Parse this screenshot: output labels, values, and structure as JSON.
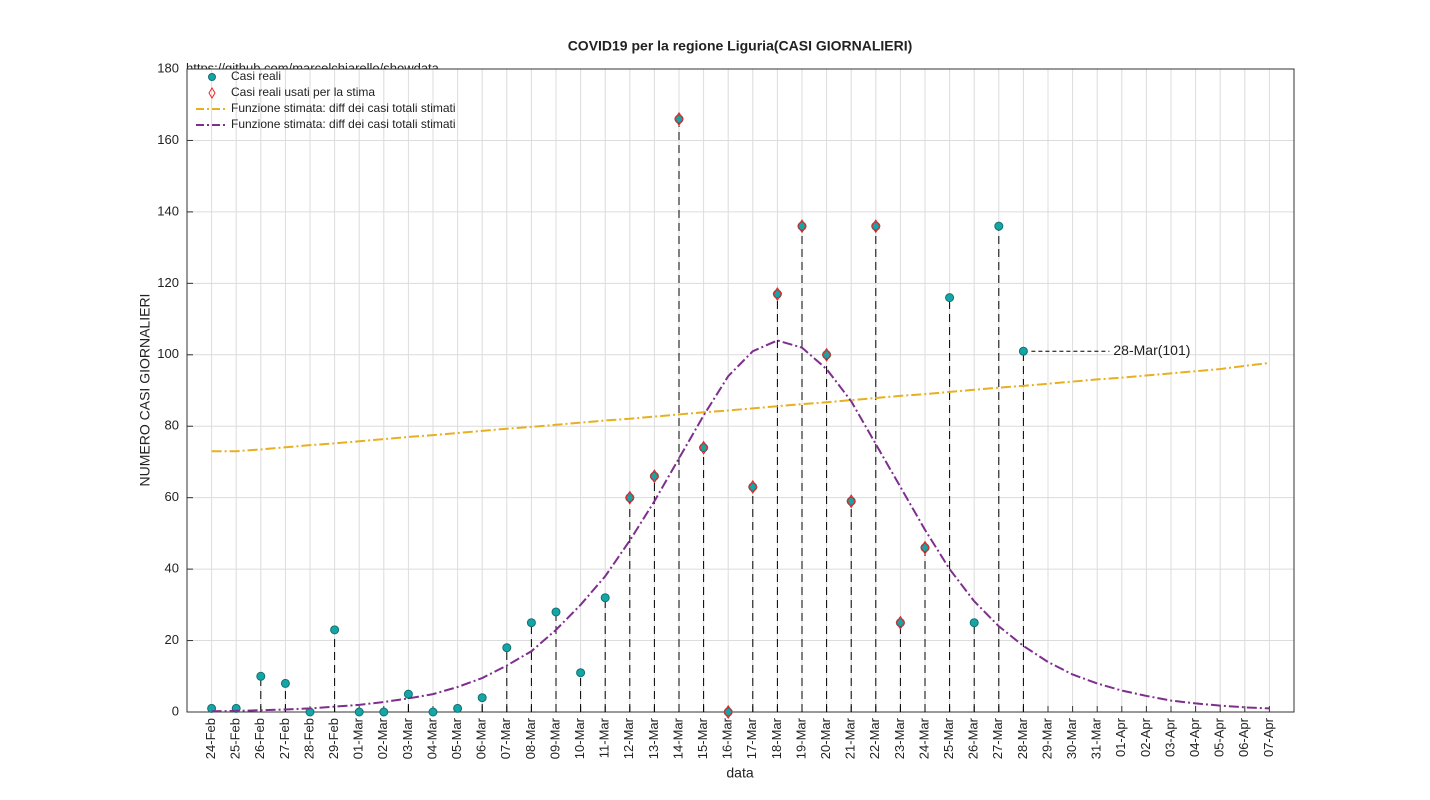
{
  "chart_data": {
    "type": "line",
    "title": "COVID19 per la regione Liguria(CASI GIORNALIERI)",
    "source": "https://github.com/marcelchiarello/showdata",
    "x_label": "data",
    "y_label": "NUMERO CASI GIORNALIERI",
    "annotation": {
      "text": "28-Mar(101)",
      "category_index": 33,
      "series_index": 0
    },
    "categories": [
      "24-Feb",
      "25-Feb",
      "26-Feb",
      "27-Feb",
      "28-Feb",
      "29-Feb",
      "01-Mar",
      "02-Mar",
      "03-Mar",
      "04-Mar",
      "05-Mar",
      "06-Mar",
      "07-Mar",
      "08-Mar",
      "09-Mar",
      "10-Mar",
      "11-Mar",
      "12-Mar",
      "13-Mar",
      "14-Mar",
      "15-Mar",
      "16-Mar",
      "17-Mar",
      "18-Mar",
      "19-Mar",
      "20-Mar",
      "21-Mar",
      "22-Mar",
      "23-Mar",
      "24-Mar",
      "25-Mar",
      "26-Mar",
      "27-Mar",
      "28-Mar",
      "29-Mar",
      "30-Mar",
      "31-Mar",
      "01-Apr",
      "02-Apr",
      "03-Apr",
      "04-Apr",
      "05-Apr",
      "06-Apr",
      "07-Apr"
    ],
    "series": [
      {
        "name": "Casi reali",
        "kind": "points",
        "color": "#14a6a6",
        "stems": true,
        "values": [
          1,
          1,
          10,
          8,
          0,
          23,
          0,
          0,
          5,
          0,
          1,
          4,
          18,
          25,
          28,
          11,
          32,
          60,
          66,
          166,
          74,
          0,
          63,
          117,
          136,
          100,
          59,
          136,
          25,
          46,
          116,
          25,
          136,
          101,
          null,
          null,
          null,
          null,
          null,
          null,
          null,
          null,
          null,
          null
        ]
      },
      {
        "name": "Casi reali usati per la stima",
        "kind": "diamonds",
        "color": "#e8282b",
        "values": [
          null,
          null,
          null,
          null,
          null,
          null,
          null,
          null,
          null,
          null,
          null,
          null,
          null,
          null,
          null,
          null,
          null,
          60,
          66,
          166,
          74,
          0,
          63,
          117,
          136,
          100,
          59,
          136,
          25,
          46,
          null,
          null,
          null,
          null,
          null,
          null,
          null,
          null,
          null,
          null,
          null,
          null,
          null,
          null
        ]
      },
      {
        "name": "Funzione stimata: diff dei casi totali stimati",
        "kind": "line",
        "color": "#e8b020",
        "values": [
          73,
          73,
          73.5,
          74.1,
          74.7,
          75.2,
          75.8,
          76.4,
          77,
          77.5,
          78.1,
          78.7,
          79.3,
          79.8,
          80.4,
          81,
          81.6,
          82.1,
          82.7,
          83.3,
          83.9,
          84.4,
          85,
          85.6,
          86.2,
          86.7,
          87.3,
          87.9,
          88.5,
          89,
          89.6,
          90.2,
          90.8,
          91.3,
          91.9,
          92.5,
          93.1,
          93.6,
          94.2,
          94.8,
          95.4,
          96,
          96.9,
          97.7
        ]
      },
      {
        "name": "Funzione stimata: diff dei casi totali stimati",
        "kind": "line",
        "color": "#7e2f8e",
        "values": [
          0.2,
          0.3,
          0.5,
          0.7,
          1,
          1.5,
          2,
          2.8,
          3.8,
          5,
          7,
          9.5,
          13,
          17,
          23,
          30,
          38,
          48,
          59,
          71,
          83,
          94,
          101,
          104,
          102,
          96,
          87,
          75,
          63,
          51,
          40,
          31,
          24,
          18.5,
          14,
          10.5,
          8,
          6,
          4.5,
          3.2,
          2.4,
          1.8,
          1.3,
          1
        ]
      }
    ],
    "ylim": [
      0,
      180
    ],
    "yticks": [
      0,
      20,
      40,
      60,
      80,
      100,
      120,
      140,
      160,
      180
    ],
    "grid": true,
    "legend": "upper-left"
  }
}
